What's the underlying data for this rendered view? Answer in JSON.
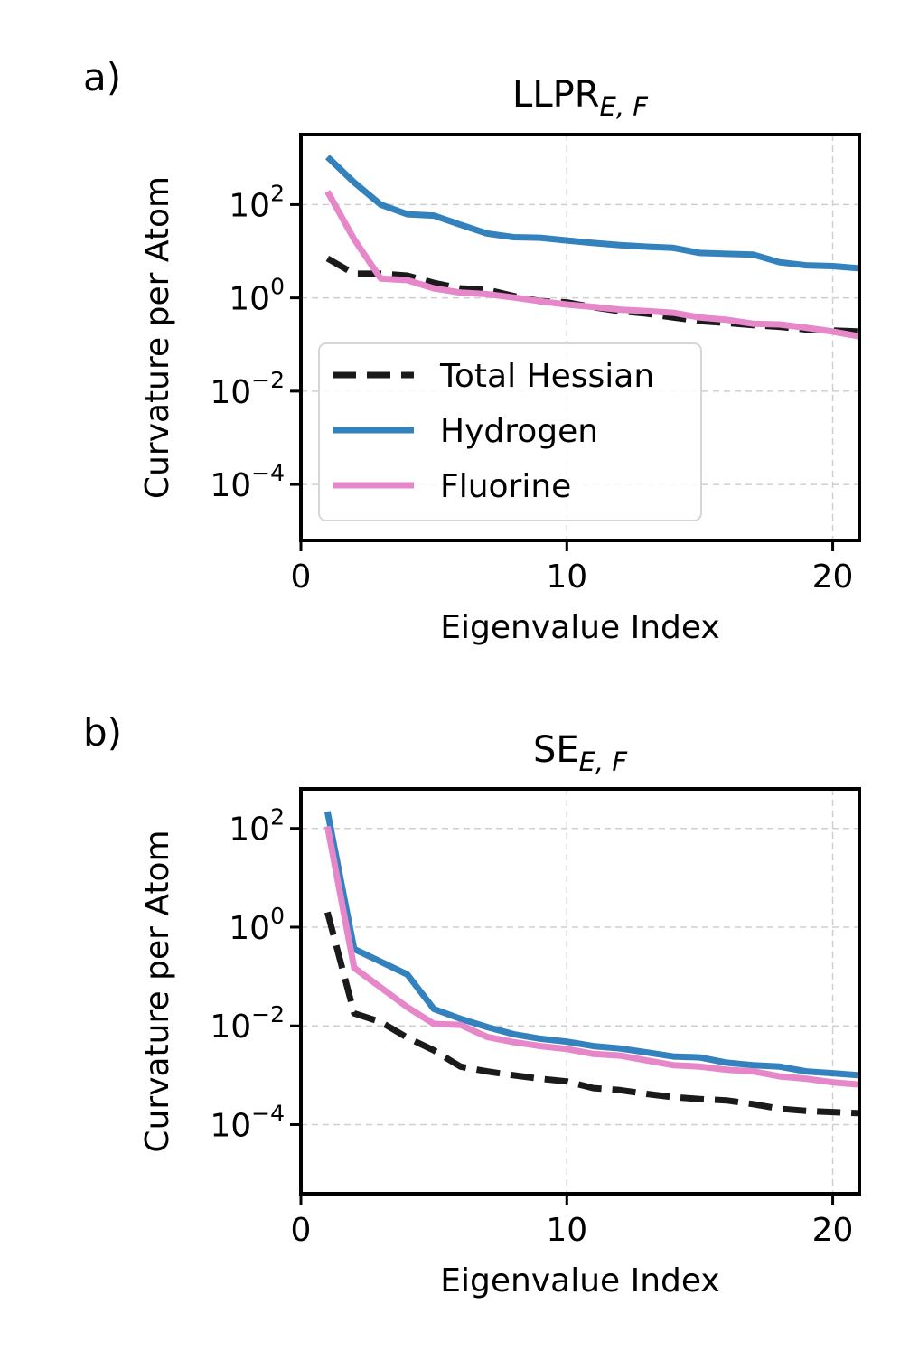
{
  "chart_data": [
    {
      "panel_label": "a)",
      "type": "line",
      "title": "LLPR",
      "title_subscript": "E, F",
      "xlabel": "Eigenvalue Index",
      "ylabel": "Curvature per Atom",
      "xlim": [
        0,
        21
      ],
      "ylim_log10": [
        -5.2,
        3.5
      ],
      "yscale": "log",
      "xticks": [
        0,
        10,
        20
      ],
      "yticks_exponents": [
        2,
        0,
        -2,
        -4
      ],
      "grid": true,
      "legend": {
        "placement": "lower-left",
        "entries": [
          "Total Hessian",
          "Hydrogen",
          "Fluorine"
        ]
      },
      "x": [
        1,
        2,
        3,
        4,
        5,
        6,
        7,
        8,
        9,
        10,
        11,
        12,
        13,
        14,
        15,
        16,
        17,
        18,
        19,
        20,
        21
      ],
      "series": [
        {
          "name": "Total Hessian",
          "color": "#1a1a1a",
          "style": "dashed",
          "values": [
            7,
            3.3,
            3.3,
            3,
            2.1,
            1.6,
            1.5,
            1.1,
            0.85,
            0.8,
            0.63,
            0.52,
            0.46,
            0.38,
            0.32,
            0.29,
            0.26,
            0.24,
            0.21,
            0.2,
            0.19
          ]
        },
        {
          "name": "Hydrogen",
          "color": "#3482bd",
          "style": "solid",
          "values": [
            1050,
            300,
            100,
            62,
            58,
            37,
            24,
            20,
            19.5,
            17,
            15,
            13.5,
            12.5,
            11.8,
            9.2,
            8.8,
            8.5,
            5.8,
            5,
            4.8,
            4.3
          ]
        },
        {
          "name": "Fluorine",
          "color": "#e587c9",
          "style": "solid",
          "values": [
            190,
            18,
            2.6,
            2.4,
            1.6,
            1.3,
            1.2,
            1.02,
            0.85,
            0.72,
            0.64,
            0.56,
            0.52,
            0.48,
            0.38,
            0.34,
            0.28,
            0.27,
            0.23,
            0.19,
            0.15
          ]
        }
      ]
    },
    {
      "panel_label": "b)",
      "type": "line",
      "title": "SE",
      "title_subscript": "E, F",
      "xlabel": "Eigenvalue Index",
      "ylabel": "Curvature per Atom",
      "xlim": [
        0,
        21
      ],
      "ylim_log10": [
        -5.4,
        2.8
      ],
      "yscale": "log",
      "xticks": [
        0,
        10,
        20
      ],
      "yticks_exponents": [
        2,
        0,
        -2,
        -4
      ],
      "grid": true,
      "x": [
        1,
        2,
        3,
        4,
        5,
        6,
        7,
        8,
        9,
        10,
        11,
        12,
        13,
        14,
        15,
        16,
        17,
        18,
        19,
        20,
        21
      ],
      "series": [
        {
          "name": "Total Hessian",
          "color": "#1a1a1a",
          "style": "dashed",
          "values": [
            2,
            0.018,
            0.012,
            0.0058,
            0.0032,
            0.0015,
            0.0012,
            0.001,
            0.00085,
            0.00075,
            0.00055,
            0.0005,
            0.00042,
            0.00036,
            0.00033,
            0.00031,
            0.00026,
            0.00021,
            0.00019,
            0.00018,
            0.00017
          ]
        },
        {
          "name": "Hydrogen",
          "color": "#3482bd",
          "style": "solid",
          "values": [
            220,
            0.36,
            0.2,
            0.11,
            0.022,
            0.014,
            0.0095,
            0.0068,
            0.0055,
            0.0048,
            0.0039,
            0.0035,
            0.0029,
            0.0024,
            0.0023,
            0.0018,
            0.0016,
            0.0015,
            0.0012,
            0.0011,
            0.001
          ]
        },
        {
          "name": "Fluorine",
          "color": "#e587c9",
          "style": "solid",
          "values": [
            110,
            0.15,
            0.06,
            0.024,
            0.011,
            0.0105,
            0.006,
            0.0047,
            0.0039,
            0.0034,
            0.0027,
            0.0025,
            0.002,
            0.0016,
            0.0015,
            0.0013,
            0.0012,
            0.00095,
            0.00085,
            0.00072,
            0.00065
          ]
        }
      ]
    }
  ]
}
